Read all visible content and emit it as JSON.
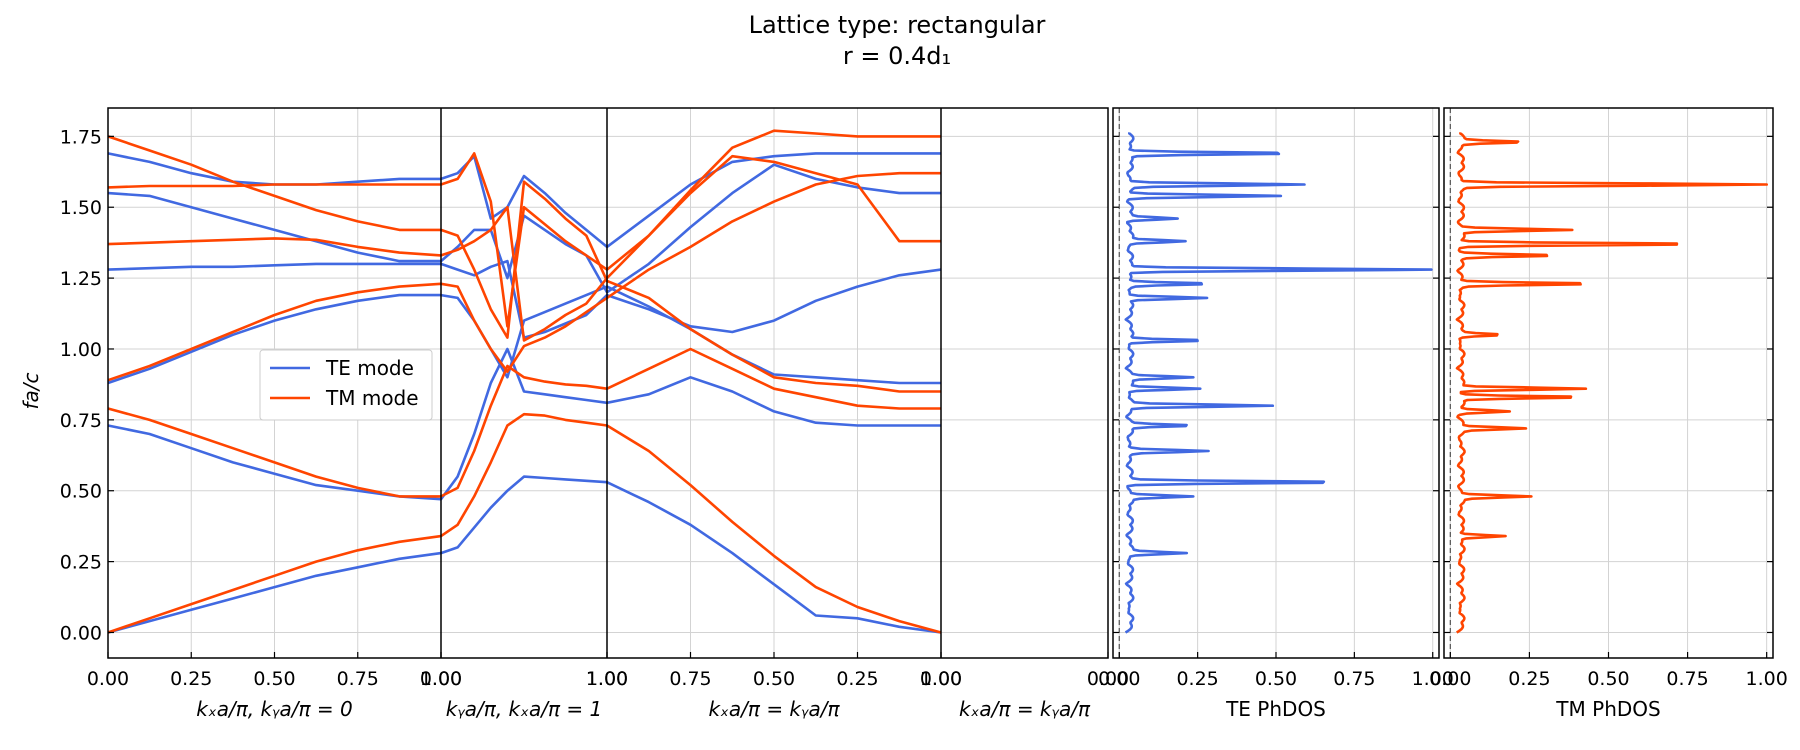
{
  "chart_data": {
    "type": "line",
    "title": "Lattice type: rectangular",
    "subtitle": "r = 0.4d₁",
    "ylabel": "fa/c",
    "ylim": [
      -0.09,
      1.85
    ],
    "yticks": [
      "0.00",
      "0.25",
      "0.50",
      "0.75",
      "1.00",
      "1.25",
      "1.50",
      "1.75"
    ],
    "colors": {
      "te": "#4169e1",
      "tm": "#ff4500"
    },
    "legend": {
      "position": "center-left",
      "entries": [
        "TE mode",
        "TM mode"
      ]
    },
    "grid": true,
    "band_segments": [
      {
        "xlabel": "kₓa/π, kᵧa/π = 0",
        "xticks": [
          "0.00",
          "0.25",
          "0.50",
          "0.75",
          "1.00"
        ]
      },
      {
        "xlabel": "kᵧa/π, kₓa/π = 1",
        "xticks": [
          "0.00",
          "1.00"
        ]
      },
      {
        "xlabel": "kₓa/π = kᵧa/π",
        "xticks": [
          "1.00",
          "0.75",
          "0.50",
          "0.25",
          "0.00"
        ]
      },
      {
        "xlabel": "kₓa/π = kᵧa/π",
        "xticks": [
          "1.00",
          "0.00"
        ]
      }
    ],
    "band_x": [
      0,
      0.125,
      0.25,
      0.375,
      0.5,
      0.625,
      0.75,
      0.875,
      1,
      1.1,
      1.2,
      1.3,
      1.4,
      1.5,
      1.625,
      1.75,
      1.875,
      2,
      2.125,
      2.25,
      2.375,
      2.5,
      2.625,
      2.75,
      2.875,
      3
    ],
    "series": [
      {
        "name": "TE mode",
        "mode": "TE",
        "values": [
          0.0,
          0.04,
          0.08,
          0.12,
          0.16,
          0.2,
          0.23,
          0.26,
          0.28,
          0.3,
          0.37,
          0.44,
          0.5,
          0.55,
          0.545,
          0.54,
          0.535,
          0.53,
          0.46,
          0.38,
          0.28,
          0.17,
          0.06,
          0.05,
          0.02,
          0.0
        ]
      },
      {
        "name": "TE mode",
        "mode": "TE",
        "values": [
          0.73,
          0.7,
          0.65,
          0.6,
          0.56,
          0.52,
          0.5,
          0.48,
          0.47,
          0.55,
          0.7,
          0.88,
          1.0,
          0.85,
          0.84,
          0.83,
          0.82,
          0.81,
          0.84,
          0.9,
          0.85,
          0.78,
          0.74,
          0.73,
          0.73,
          0.73
        ]
      },
      {
        "name": "TE mode",
        "mode": "TE",
        "values": [
          0.88,
          0.93,
          0.99,
          1.05,
          1.1,
          1.14,
          1.17,
          1.19,
          1.19,
          1.18,
          1.1,
          1.0,
          0.9,
          1.1,
          1.13,
          1.16,
          1.19,
          1.22,
          1.15,
          1.07,
          0.98,
          0.91,
          0.9,
          0.89,
          0.88,
          0.88
        ]
      },
      {
        "name": "TE mode",
        "mode": "TE",
        "values": [
          1.28,
          1.285,
          1.29,
          1.29,
          1.295,
          1.3,
          1.3,
          1.3,
          1.3,
          1.28,
          1.26,
          1.29,
          1.31,
          1.04,
          1.06,
          1.09,
          1.12,
          1.19,
          1.14,
          1.08,
          1.06,
          1.1,
          1.17,
          1.22,
          1.26,
          1.28
        ]
      },
      {
        "name": "TE mode",
        "mode": "TE",
        "values": [
          1.55,
          1.54,
          1.5,
          1.46,
          1.42,
          1.38,
          1.34,
          1.31,
          1.31,
          1.36,
          1.42,
          1.42,
          1.25,
          1.47,
          1.42,
          1.37,
          1.33,
          1.2,
          1.3,
          1.43,
          1.55,
          1.65,
          1.6,
          1.57,
          1.55,
          1.55
        ]
      },
      {
        "name": "TE mode",
        "mode": "TE",
        "values": [
          1.69,
          1.66,
          1.62,
          1.59,
          1.58,
          1.58,
          1.59,
          1.6,
          1.6,
          1.62,
          1.68,
          1.46,
          1.5,
          1.61,
          1.55,
          1.48,
          1.42,
          1.36,
          1.47,
          1.58,
          1.66,
          1.68,
          1.69,
          1.69,
          1.69,
          1.69
        ]
      },
      {
        "name": "TM mode",
        "mode": "TM",
        "values": [
          0.0,
          0.05,
          0.1,
          0.15,
          0.2,
          0.25,
          0.29,
          0.32,
          0.34,
          0.38,
          0.48,
          0.6,
          0.73,
          0.77,
          0.765,
          0.75,
          0.74,
          0.73,
          0.64,
          0.52,
          0.39,
          0.27,
          0.16,
          0.09,
          0.04,
          0.0
        ]
      },
      {
        "name": "TM mode",
        "mode": "TM",
        "values": [
          0.79,
          0.75,
          0.7,
          0.65,
          0.6,
          0.55,
          0.51,
          0.48,
          0.48,
          0.51,
          0.64,
          0.8,
          0.94,
          0.9,
          0.885,
          0.875,
          0.87,
          0.86,
          0.93,
          1.0,
          0.93,
          0.86,
          0.83,
          0.8,
          0.79,
          0.79
        ]
      },
      {
        "name": "TM mode",
        "mode": "TM",
        "values": [
          0.89,
          0.94,
          1.0,
          1.06,
          1.12,
          1.17,
          1.2,
          1.22,
          1.23,
          1.22,
          1.1,
          1.0,
          0.92,
          1.01,
          1.04,
          1.08,
          1.13,
          1.18,
          1.28,
          1.36,
          1.45,
          1.52,
          1.58,
          1.61,
          1.62,
          1.62
        ]
      },
      {
        "name": "TM mode",
        "mode": "TM",
        "values": [
          1.37,
          1.375,
          1.38,
          1.385,
          1.39,
          1.385,
          1.36,
          1.34,
          1.33,
          1.35,
          1.38,
          1.42,
          1.5,
          1.03,
          1.07,
          1.12,
          1.16,
          1.25,
          1.4,
          1.56,
          1.71,
          1.77,
          1.76,
          1.75,
          1.75,
          1.75
        ]
      },
      {
        "name": "TM mode",
        "mode": "TM",
        "values": [
          1.57,
          1.575,
          1.575,
          1.575,
          1.58,
          1.58,
          1.58,
          1.58,
          1.58,
          1.6,
          1.69,
          1.52,
          1.08,
          1.5,
          1.44,
          1.38,
          1.33,
          1.28,
          1.4,
          1.55,
          1.68,
          1.66,
          1.62,
          1.58,
          1.38,
          1.38
        ]
      },
      {
        "name": "TM mode",
        "mode": "TM",
        "values": [
          1.75,
          1.7,
          1.65,
          1.59,
          1.54,
          1.49,
          1.45,
          1.42,
          1.42,
          1.4,
          1.28,
          1.14,
          1.04,
          1.59,
          1.53,
          1.46,
          1.4,
          1.24,
          1.18,
          1.07,
          0.98,
          0.9,
          0.88,
          0.87,
          0.85,
          0.85
        ]
      }
    ],
    "dos_panels": [
      {
        "name": "TE PhDOS",
        "xlabel": "TE PhDOS",
        "xticks": [
          "0.00",
          "0.25",
          "0.50",
          "0.75",
          "1.00"
        ],
        "peaks": [
          [
            0.28,
            0.18
          ],
          [
            0.48,
            0.2
          ],
          [
            0.53,
            0.7
          ],
          [
            0.64,
            0.24
          ],
          [
            0.73,
            0.2
          ],
          [
            0.8,
            0.45
          ],
          [
            0.86,
            0.23
          ],
          [
            0.9,
            0.2
          ],
          [
            1.03,
            0.25
          ],
          [
            1.18,
            0.25
          ],
          [
            1.23,
            0.25
          ],
          [
            1.28,
            0.97
          ],
          [
            1.38,
            0.18
          ],
          [
            1.46,
            0.15
          ],
          [
            1.54,
            0.48
          ],
          [
            1.58,
            0.55
          ],
          [
            1.69,
            0.55
          ]
        ]
      },
      {
        "name": "TM PhDOS",
        "xlabel": "TM PhDOS",
        "xticks": [
          "0.00",
          "0.25",
          "0.50",
          "0.75",
          "1.00"
        ],
        "peaks": [
          [
            0.34,
            0.15
          ],
          [
            0.48,
            0.22
          ],
          [
            0.72,
            0.2
          ],
          [
            0.78,
            0.15
          ],
          [
            0.83,
            0.4
          ],
          [
            0.86,
            0.4
          ],
          [
            1.05,
            0.12
          ],
          [
            1.23,
            0.42
          ],
          [
            1.33,
            0.3
          ],
          [
            1.37,
            0.78
          ],
          [
            1.42,
            0.35
          ],
          [
            1.58,
            0.98
          ],
          [
            1.73,
            0.2
          ]
        ]
      }
    ]
  }
}
